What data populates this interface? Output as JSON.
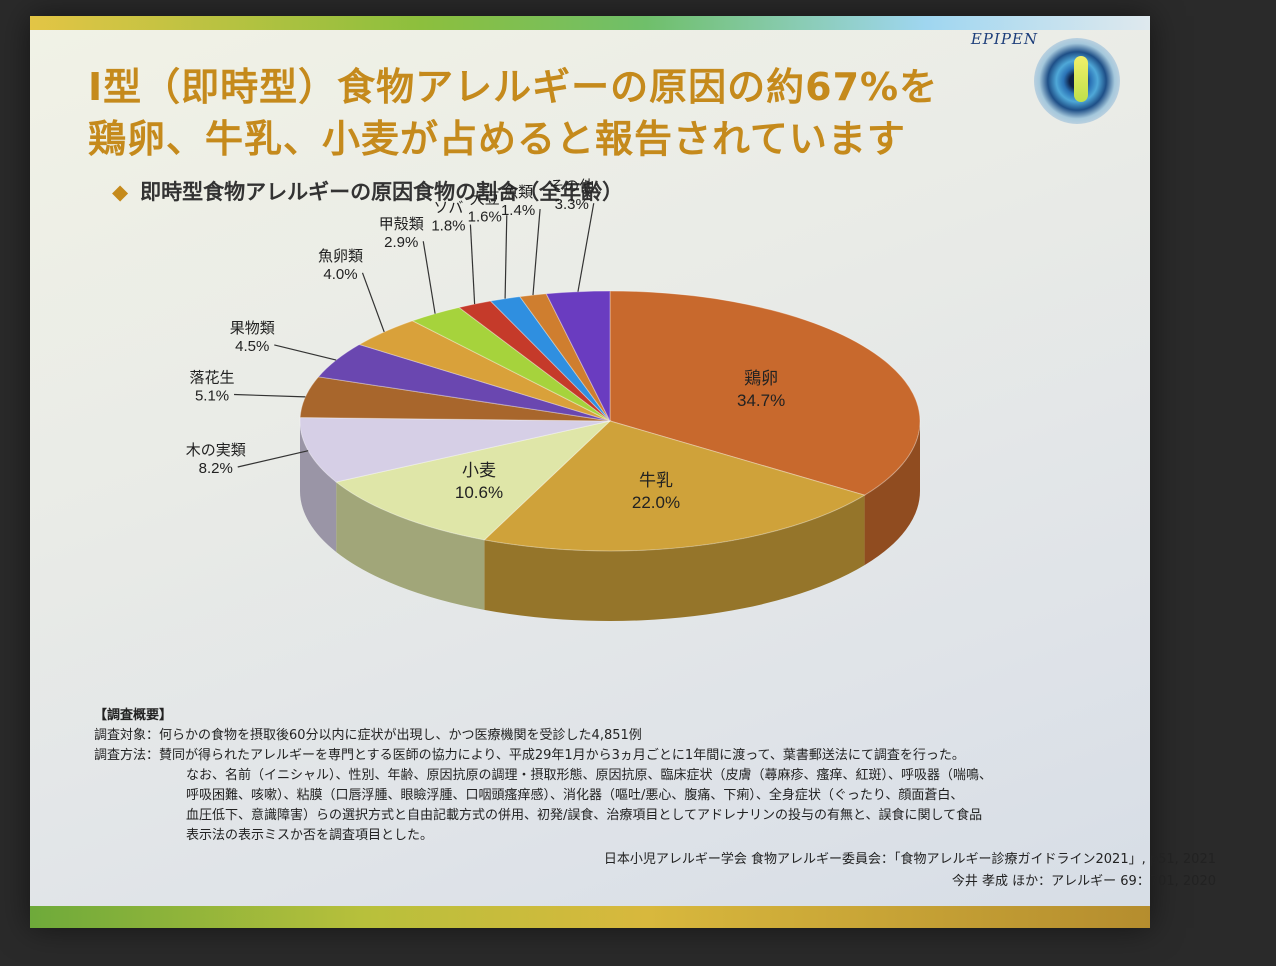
{
  "slide": {
    "brand": "EPIPEN",
    "title_line1": "Ⅰ型（即時型）食物アレルギーの原因の約67%を",
    "title_line2": "鶏卵、牛乳、小麦が占めると報告されています",
    "subtitle_marker": "◆",
    "subtitle": "即時型食物アレルギーの原因食物の割合（全年齢）"
  },
  "colors": {
    "title": "#c58a1c",
    "egg": "#c8692d",
    "milk": "#cfa23a",
    "wheat": "#dfe6a8",
    "treenut": "#d6cfe6",
    "peanut": "#a8662c",
    "fruit": "#6a47b0",
    "fishroe": "#d9a13a",
    "crustacean": "#a6d33c",
    "buckwheat": "#c53a2a",
    "soy": "#2f8fe0",
    "fish": "#cf7e2f",
    "other": "#6a3cc0"
  },
  "chart_data": {
    "type": "pie",
    "title": "即時型食物アレルギーの原因食物の割合（全年齢）",
    "unit": "%",
    "slices": [
      {
        "name": "鶏卵",
        "value": 34.7,
        "label": "34.7%"
      },
      {
        "name": "牛乳",
        "value": 22.0,
        "label": "22.0%"
      },
      {
        "name": "小麦",
        "value": 10.6,
        "label": "10.6%"
      },
      {
        "name": "木の実類",
        "value": 8.2,
        "label": "8.2%"
      },
      {
        "name": "落花生",
        "value": 5.1,
        "label": "5.1%"
      },
      {
        "name": "果物類",
        "value": 4.5,
        "label": "4.5%"
      },
      {
        "name": "魚卵類",
        "value": 4.0,
        "label": "4.0%"
      },
      {
        "name": "甲殻類",
        "value": 2.9,
        "label": "2.9%"
      },
      {
        "name": "ソバ",
        "value": 1.8,
        "label": "1.8%"
      },
      {
        "name": "大豆",
        "value": 1.6,
        "label": "1.6%"
      },
      {
        "name": "魚類",
        "value": 1.4,
        "label": "1.4%"
      },
      {
        "name": "その他",
        "value": 3.3,
        "label": "3.3%"
      }
    ]
  },
  "notes": {
    "heading": "【調査概要】",
    "subject_label": "調査対象：",
    "subject_text": "何らかの食物を摂取後60分以内に症状が出現し、かつ医療機関を受診した4,851例",
    "method_label": "調査方法：",
    "method_lines": [
      "賛同が得られたアレルギーを専門とする医師の協力により、平成29年1月から3ヵ月ごとに1年間に渡って、葉書郵送法にて調査を行った。",
      "なお、名前（イニシャル）、性別、年齢、原因抗原の調理・摂取形態、原因抗原、臨床症状（皮膚（蕁麻疹、瘙痒、紅斑）、呼吸器（喘鳴、",
      "呼吸困難、咳嗽）、粘膜（口唇浮腫、眼瞼浮腫、口咽頭瘙痒感）、消化器（嘔吐/悪心、腹痛、下痢）、全身症状（ぐったり、顔面蒼白、",
      "血圧低下、意識障害）らの選択方式と自由記載方式の併用、初発/誤食、治療項目としてアドレナリンの投与の有無と、誤食に関して食品",
      "表示法の表示ミスか否を調査項目とした。"
    ]
  },
  "sources": {
    "line1": "日本小児アレルギー学会 食物アレルギー委員会：「食物アレルギー診療ガイドライン2021」, p51, 2021",
    "line2": "今井 孝成 ほか：アレルギー 69：701, 2020"
  }
}
